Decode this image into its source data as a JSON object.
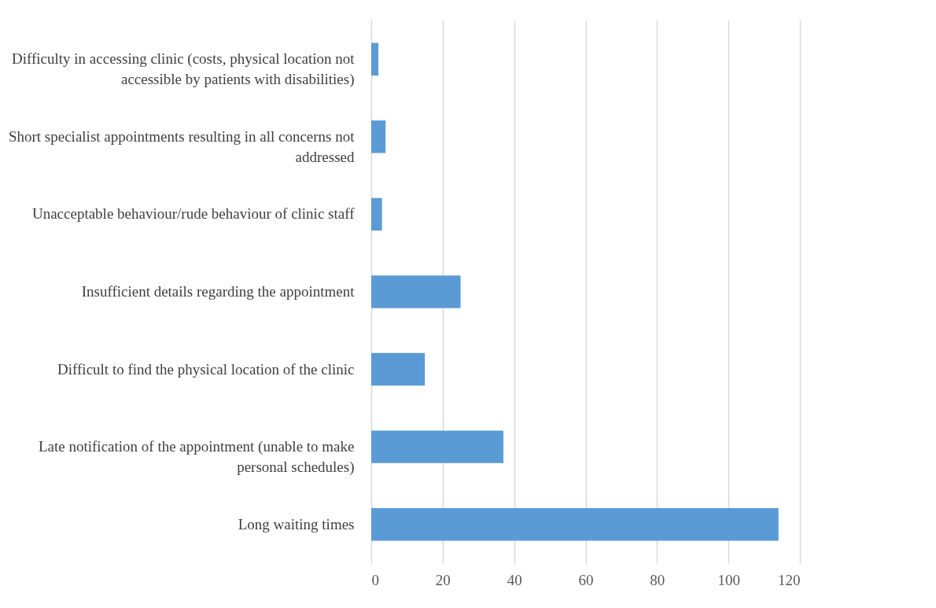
{
  "chart_data": {
    "type": "bar",
    "orientation": "horizontal",
    "categories": [
      "Difficulty in accessing clinic (costs, physical location not accessible by patients with disabilities)",
      "Short specialist appointments resulting in all concerns not addressed",
      "Unacceptable behaviour/rude behaviour of clinic staff",
      "Insufficient details regarding the appointment",
      "Difficult to find the physical location of the clinic",
      "Late notification of the appointment (unable to make personal schedules)",
      "Long waiting times"
    ],
    "values": [
      2,
      4,
      3,
      25,
      15,
      37,
      114
    ],
    "color": "#5b9bd5",
    "xlim": [
      0,
      120
    ],
    "xticks": [
      0,
      20,
      40,
      60,
      80,
      100,
      120
    ],
    "grid": "x"
  }
}
